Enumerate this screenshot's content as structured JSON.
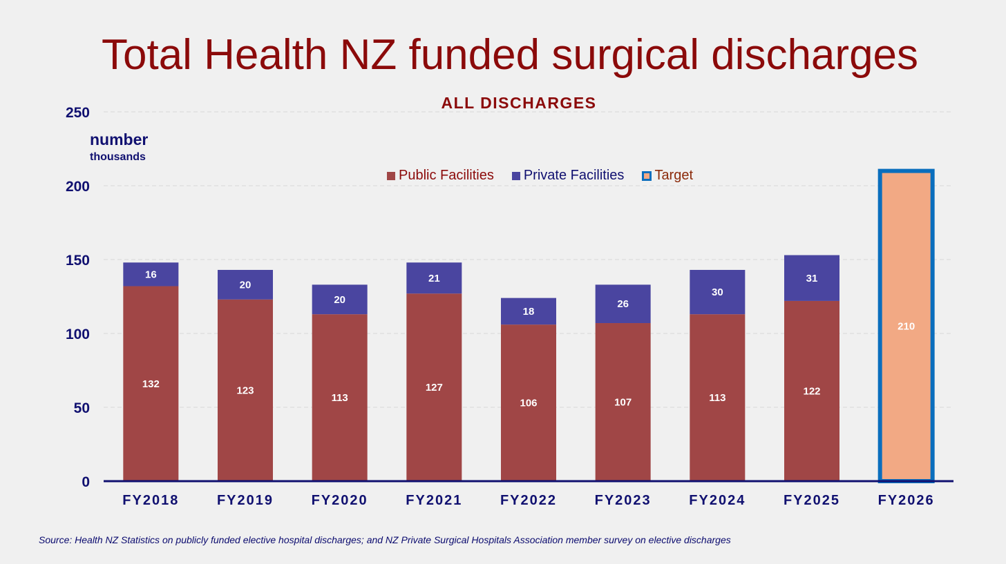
{
  "title": "Total Health NZ funded surgical discharges",
  "subtitle": "ALL DISCHARGES",
  "unit_label": "number",
  "unit_sublabel": "thousands",
  "source": "Source: Health NZ Statistics on publicly funded elective hospital discharges; and NZ Private Surgical Hospitals Association member survey on elective discharges",
  "legend": {
    "public": "Public Facilities",
    "private": "Private Facilities",
    "target": "Target"
  },
  "colors": {
    "public": "#a04646",
    "private": "#4a45a0",
    "target_fill": "#f2a984",
    "target_border": "#0a6ebd",
    "title": "#8b0a0a",
    "axis": "#101070",
    "gridline": "#d8d8d8",
    "legend_target_text": "#8b2a0a"
  },
  "chart_data": {
    "type": "bar",
    "stacked": true,
    "categories": [
      "FY2018",
      "FY2019",
      "FY2020",
      "FY2021",
      "FY2022",
      "FY2023",
      "FY2024",
      "FY2025",
      "FY2026"
    ],
    "series": [
      {
        "name": "Public Facilities",
        "values": [
          132,
          123,
          113,
          127,
          106,
          107,
          113,
          122,
          null
        ]
      },
      {
        "name": "Private Facilities",
        "values": [
          16,
          20,
          20,
          21,
          18,
          26,
          30,
          31,
          null
        ]
      },
      {
        "name": "Target",
        "values": [
          null,
          null,
          null,
          null,
          null,
          null,
          null,
          null,
          210
        ]
      }
    ],
    "title": "Total Health NZ funded surgical discharges",
    "subtitle": "ALL DISCHARGES",
    "ylabel": "number thousands",
    "ylim": [
      0,
      250
    ],
    "yticks": [
      0,
      50,
      100,
      150,
      200,
      250
    ],
    "grid": true,
    "legend_position": "top-center"
  }
}
